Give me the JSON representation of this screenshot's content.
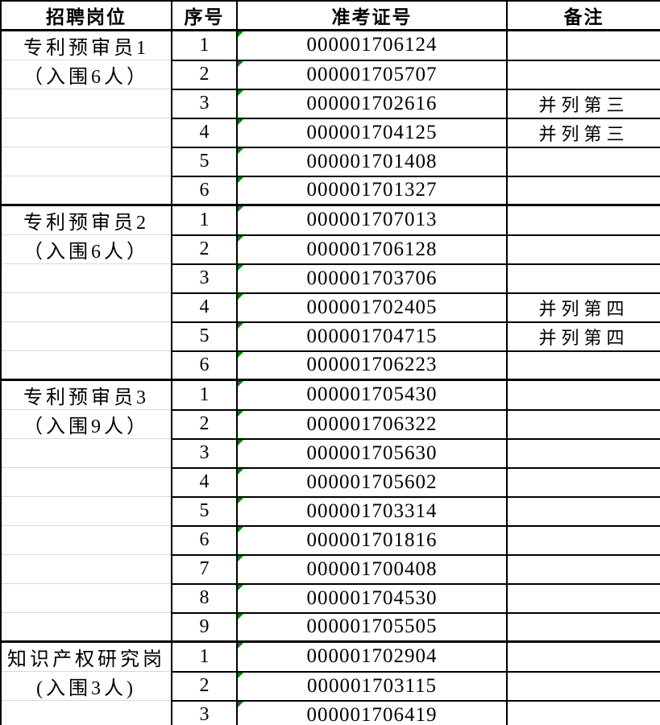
{
  "colors": {
    "border": "#000000",
    "gridline": "#d9d9d9",
    "indicator_green": "#008000",
    "background": "#ffffff",
    "text": "#000000"
  },
  "table": {
    "headers": [
      "招聘岗位",
      "序号",
      "准考证号",
      "备注"
    ],
    "sections": [
      {
        "position": "专利预审员1",
        "quota": "（入围6人）",
        "rows": [
          {
            "no": "1",
            "ticket": "000001706124",
            "note": ""
          },
          {
            "no": "2",
            "ticket": "000001705707",
            "note": ""
          },
          {
            "no": "3",
            "ticket": "000001702616",
            "note": "并列第三"
          },
          {
            "no": "4",
            "ticket": "000001704125",
            "note": "并列第三"
          },
          {
            "no": "5",
            "ticket": "000001701408",
            "note": ""
          },
          {
            "no": "6",
            "ticket": "000001701327",
            "note": ""
          }
        ]
      },
      {
        "position": "专利预审员2",
        "quota": "（入围6人）",
        "rows": [
          {
            "no": "1",
            "ticket": "000001707013",
            "note": ""
          },
          {
            "no": "2",
            "ticket": "000001706128",
            "note": ""
          },
          {
            "no": "3",
            "ticket": "000001703706",
            "note": ""
          },
          {
            "no": "4",
            "ticket": "000001702405",
            "note": "并列第四"
          },
          {
            "no": "5",
            "ticket": "000001704715",
            "note": "并列第四"
          },
          {
            "no": "6",
            "ticket": "000001706223",
            "note": ""
          }
        ]
      },
      {
        "position": "专利预审员3",
        "quota": "（入围9人）",
        "rows": [
          {
            "no": "1",
            "ticket": "000001705430",
            "note": ""
          },
          {
            "no": "2",
            "ticket": "000001706322",
            "note": ""
          },
          {
            "no": "3",
            "ticket": "000001705630",
            "note": ""
          },
          {
            "no": "4",
            "ticket": "000001705602",
            "note": ""
          },
          {
            "no": "5",
            "ticket": "000001703314",
            "note": ""
          },
          {
            "no": "6",
            "ticket": "000001701816",
            "note": ""
          },
          {
            "no": "7",
            "ticket": "000001700408",
            "note": ""
          },
          {
            "no": "8",
            "ticket": "000001704530",
            "note": ""
          },
          {
            "no": "9",
            "ticket": "000001705505",
            "note": ""
          }
        ]
      },
      {
        "position": "知识产权研究岗",
        "quota": "(入围3人)",
        "rows": [
          {
            "no": "1",
            "ticket": "000001702904",
            "note": ""
          },
          {
            "no": "2",
            "ticket": "000001703115",
            "note": ""
          },
          {
            "no": "3",
            "ticket": "000001706419",
            "note": ""
          }
        ]
      }
    ]
  }
}
